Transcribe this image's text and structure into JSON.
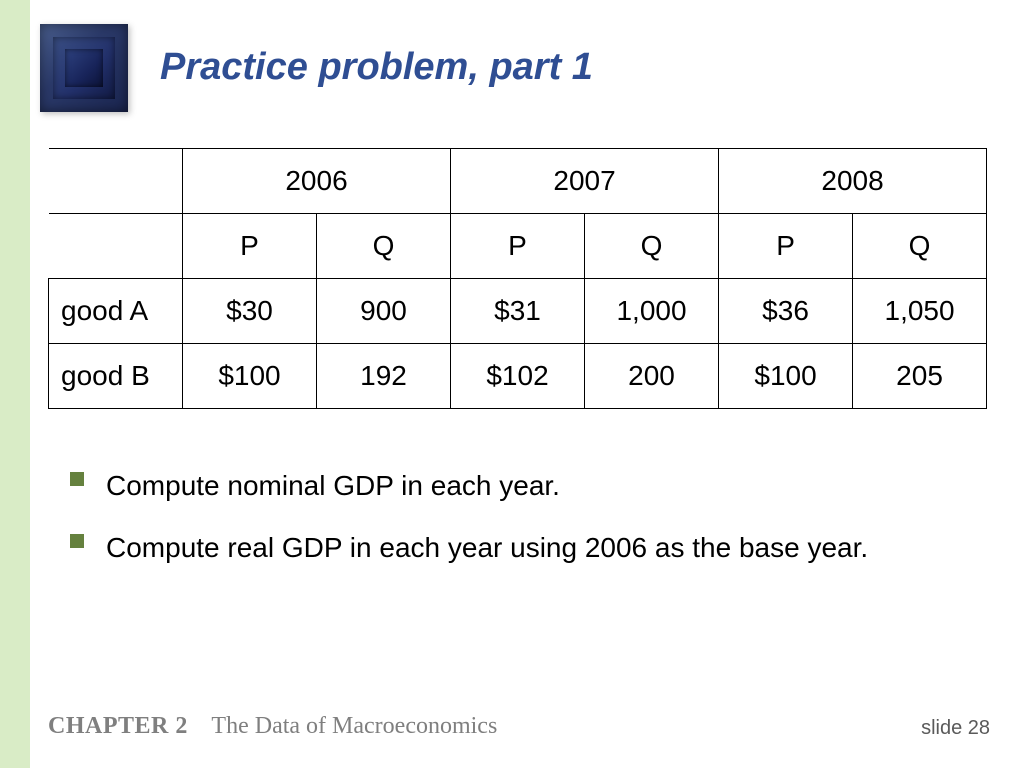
{
  "title": {
    "text": "Practice problem, part 1",
    "color": "#2f4e93",
    "fontsize": 38
  },
  "table": {
    "years": [
      "2006",
      "2007",
      "2008"
    ],
    "subcols": [
      "P",
      "Q"
    ],
    "rows": [
      {
        "label": "good A",
        "cells": [
          "$30",
          "900",
          "$31",
          "1,000",
          "$36",
          "1,050"
        ]
      },
      {
        "label": "good B",
        "cells": [
          "$100",
          "192",
          "$102",
          "200",
          "$100",
          "205"
        ]
      }
    ],
    "fontsize": 28,
    "text_color": "#000000",
    "border_color": "#000000"
  },
  "bullets": {
    "items": [
      "Compute nominal GDP in each year.",
      "Compute real GDP in each year using 2006 as the base year."
    ],
    "fontsize": 28,
    "text_color": "#000000",
    "marker_color": "#65813e"
  },
  "footer": {
    "chapter_label": "CHAPTER 2",
    "chapter_title": "The Data of Macroeconomics",
    "color": "#7f7f7f",
    "fontsize": 24
  },
  "slide": {
    "label": "slide 28",
    "color": "#5a5a5a",
    "fontsize": 20
  },
  "sidebar_color": "#d9ecc6",
  "background_color": "#ffffff"
}
